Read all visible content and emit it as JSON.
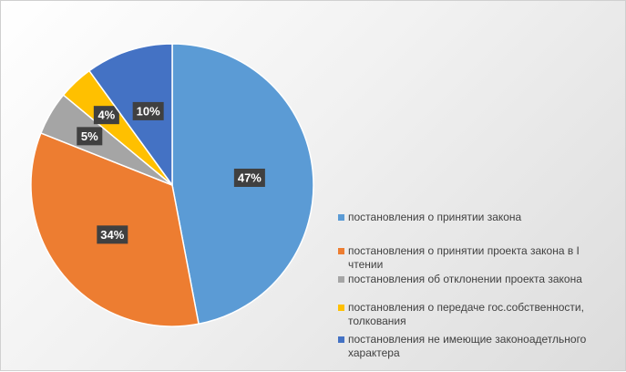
{
  "chart_data": {
    "type": "pie",
    "title": "",
    "legend_position": "right",
    "slices": [
      {
        "label": "постановления о принятии закона",
        "value": 47,
        "display": "47%",
        "color": "#5B9BD5"
      },
      {
        "label": "постановления о принятии проекта закона в I чтении",
        "value": 34,
        "display": "34%",
        "color": "#ED7D31"
      },
      {
        "label": "постановления об отклонении проекта закона",
        "value": 5,
        "display": "5%",
        "color": "#A5A5A5"
      },
      {
        "label": "постановления о передаче гос.собственности, толкования",
        "value": 4,
        "display": "4%",
        "color": "#FFC000"
      },
      {
        "label": "постановления не имеющие законоадетльного характера",
        "value": 10,
        "display": "10%",
        "color": "#4472C4"
      }
    ]
  }
}
